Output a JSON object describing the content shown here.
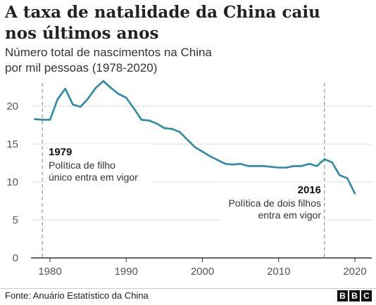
{
  "header": {
    "title_line1": "A taxa de natalidade da China caiu",
    "title_line2": "nos últimos anos",
    "subtitle_line1": "Número total de nascimentos na China",
    "subtitle_line2": "por mil pessoas (1978-2020)"
  },
  "footer": {
    "source": "Fonte: Anuário Estatístico da China",
    "logo_letters": [
      "B",
      "B",
      "C"
    ]
  },
  "colors": {
    "line": "#2b8aa8",
    "grid": "#dddddd",
    "annotation_line": "#999999"
  },
  "chart_data": {
    "type": "line",
    "title": "A taxa de natalidade da China caiu nos últimos anos",
    "subtitle": "Número total de nascimentos na China por mil pessoas (1978-2020)",
    "xlabel": "",
    "ylabel": "",
    "xlim": [
      1976,
      2022
    ],
    "ylim": [
      0,
      23
    ],
    "x_ticks": [
      1980,
      1990,
      2000,
      2010,
      2020
    ],
    "y_ticks": [
      0,
      5,
      10,
      15,
      20
    ],
    "grid": true,
    "series": [
      {
        "x": [
          1978,
          1979,
          1980,
          1981,
          1982,
          1983,
          1984,
          1985,
          1986,
          1987,
          1988,
          1989,
          1990,
          1991,
          1992,
          1993,
          1994,
          1995,
          1996,
          1997,
          1998,
          1999,
          2000,
          2001,
          2002,
          2003,
          2004,
          2005,
          2006,
          2007,
          2008,
          2009,
          2010,
          2011,
          2012,
          2013,
          2014,
          2015,
          2016,
          2017,
          2018,
          2019,
          2020
        ],
        "values": [
          18.3,
          18.2,
          18.2,
          20.9,
          22.3,
          20.2,
          19.9,
          21.0,
          22.4,
          23.3,
          22.4,
          21.6,
          21.1,
          19.7,
          18.2,
          18.1,
          17.7,
          17.1,
          17.0,
          16.6,
          15.6,
          14.6,
          14.0,
          13.4,
          12.9,
          12.4,
          12.3,
          12.4,
          12.1,
          12.1,
          12.1,
          12.0,
          11.9,
          11.9,
          12.1,
          12.1,
          12.4,
          12.1,
          13.0,
          12.6,
          10.9,
          10.5,
          8.5
        ]
      }
    ],
    "annotations": [
      {
        "x": 1979,
        "year": "1979",
        "text_line1": "Política de filho",
        "text_line2": "único entra em vigor"
      },
      {
        "x": 2016,
        "year": "2016",
        "text_line1": "Política de dois filhos",
        "text_line2": "entra em vigor"
      }
    ]
  }
}
